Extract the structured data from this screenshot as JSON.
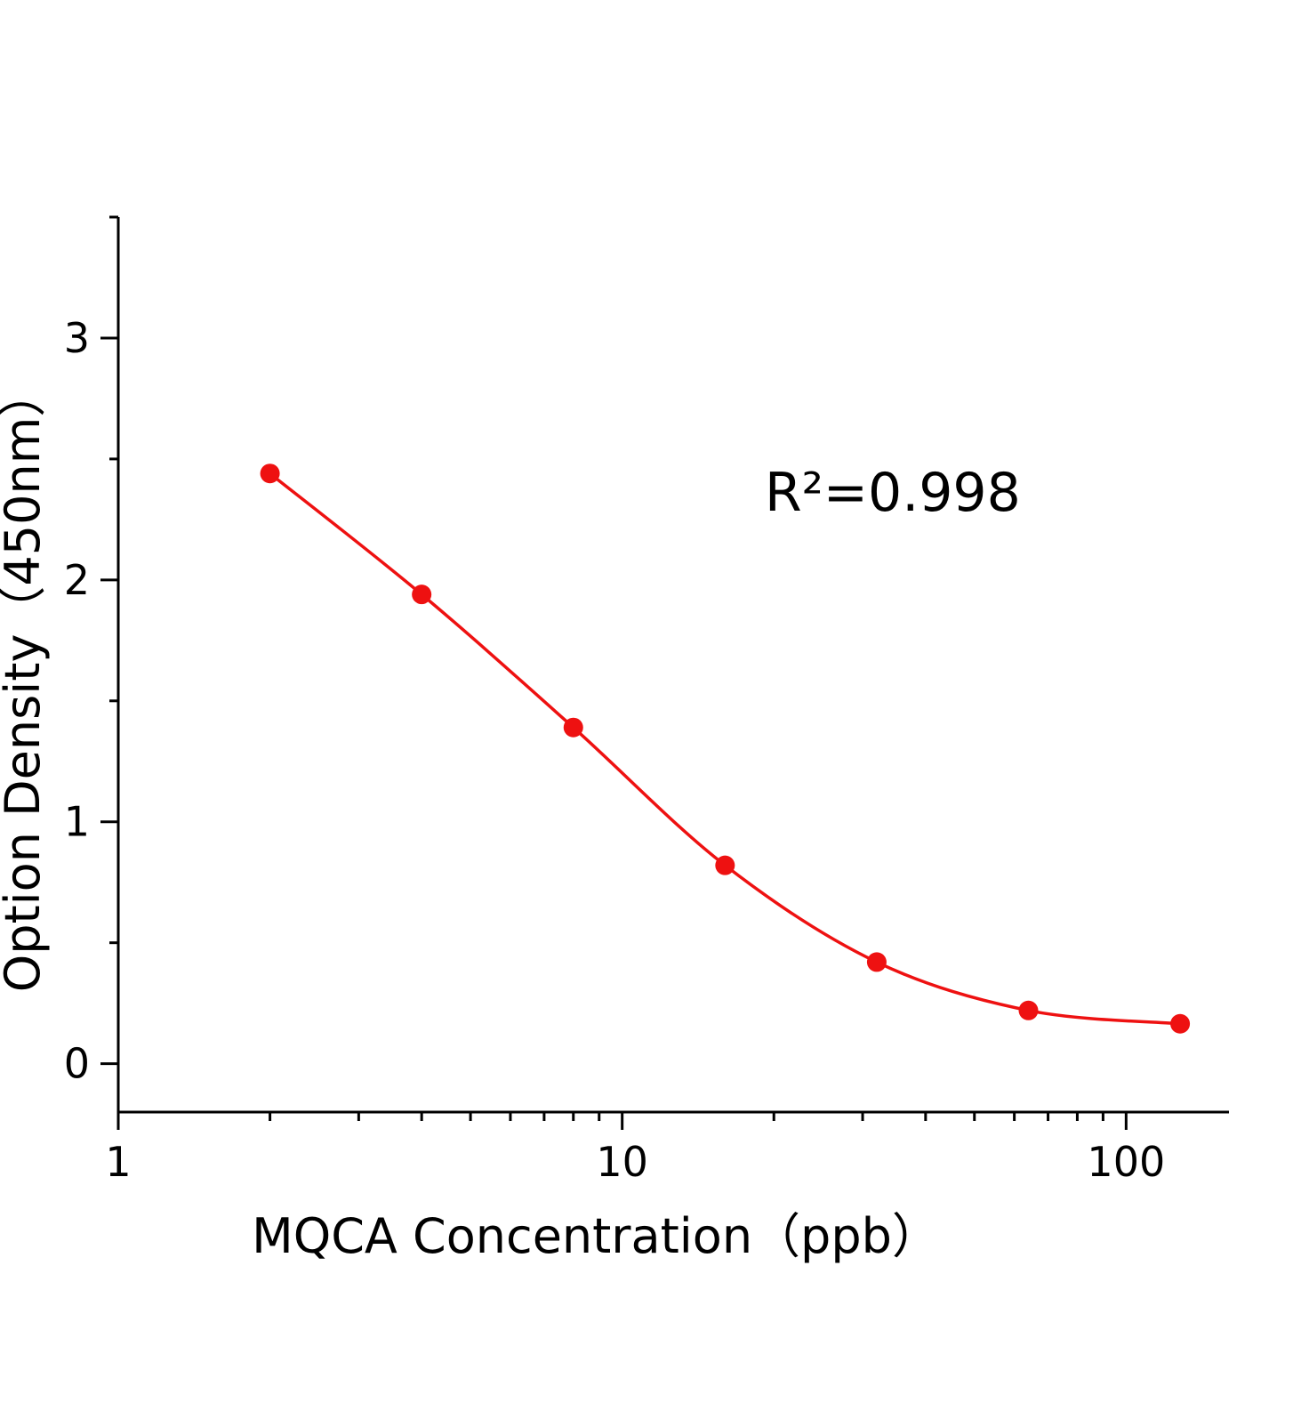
{
  "chart_data": {
    "type": "scatter-line",
    "annotation": "R²=0.998",
    "x_label": "MQCA  Concentration（ppb）",
    "y_label": "Option Density（450nm）",
    "series": [
      {
        "color": "#ee1111",
        "x": [
          2,
          4,
          8,
          16,
          32,
          64,
          128
        ],
        "values": [
          2.44,
          1.94,
          1.39,
          0.82,
          0.42,
          0.22,
          0.165
        ]
      }
    ],
    "xscale": "log",
    "xlim": [
      1,
      160
    ],
    "xticks": [
      1,
      10,
      100
    ],
    "ylim": [
      -0.2,
      3.5
    ],
    "yticks": [
      0,
      1,
      2,
      3
    ],
    "grid": false
  }
}
